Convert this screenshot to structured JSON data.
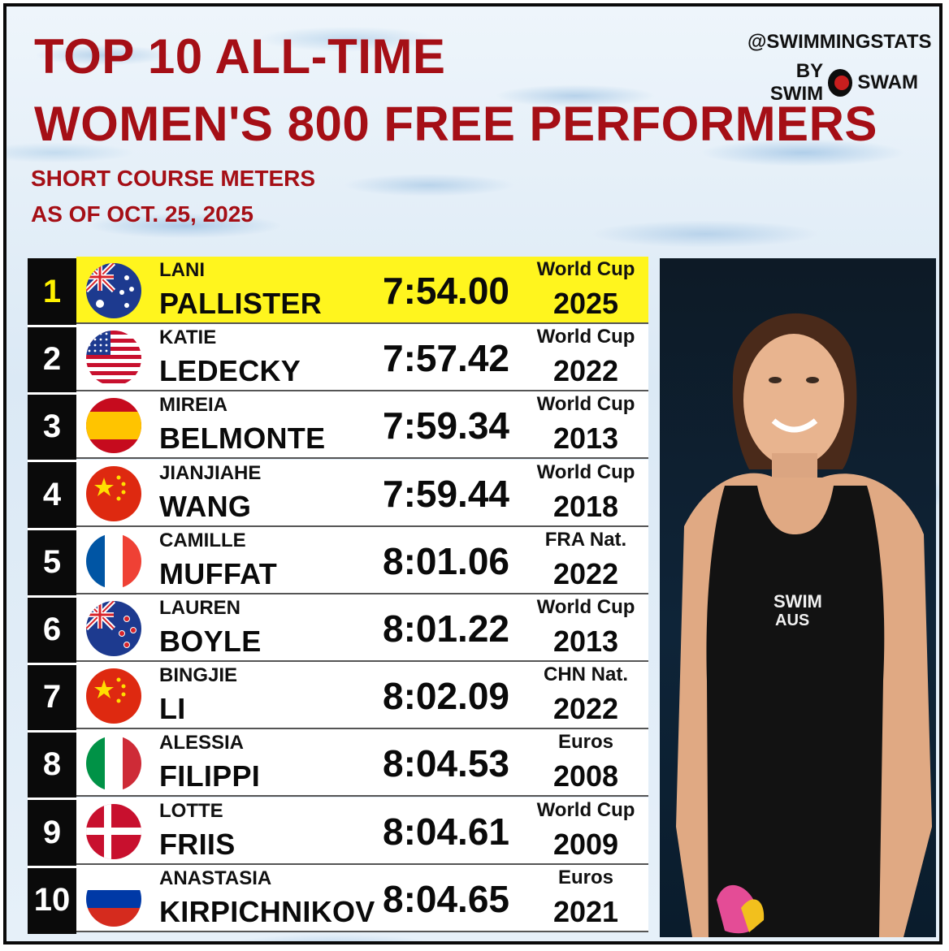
{
  "header": {
    "title_line1": "TOP 10 ALL-TIME",
    "title_line2": "WOMEN'S 800 FREE PERFORMERS",
    "subtitle1": "SHORT COURSE METERS",
    "subtitle2": "AS OF OCT. 25, 2025"
  },
  "brand": {
    "handle": "@SWIMMINGSTATS",
    "by": "BY SWIM",
    "name": "SWAM"
  },
  "colors": {
    "title_red": "#a50f16",
    "highlight_yellow": "#fff51e",
    "rank_bg": "#0a0a0a"
  },
  "rows": [
    {
      "rank": "1",
      "first": "LANI",
      "last": "PALLISTER",
      "time": "7:54.00",
      "meet": "World Cup",
      "year": "2025",
      "flag": "australia-flag"
    },
    {
      "rank": "2",
      "first": "KATIE",
      "last": "LEDECKY",
      "time": "7:57.42",
      "meet": "World Cup",
      "year": "2022",
      "flag": "usa-flag"
    },
    {
      "rank": "3",
      "first": "MIREIA",
      "last": "BELMONTE",
      "time": "7:59.34",
      "meet": "World Cup",
      "year": "2013",
      "flag": "spain-flag"
    },
    {
      "rank": "4",
      "first": "JIANJIAHE",
      "last": "WANG",
      "time": "7:59.44",
      "meet": "World Cup",
      "year": "2018",
      "flag": "china-flag"
    },
    {
      "rank": "5",
      "first": "CAMILLE",
      "last": "MUFFAT",
      "time": "8:01.06",
      "meet": "FRA Nat.",
      "year": "2022",
      "flag": "france-flag"
    },
    {
      "rank": "6",
      "first": "LAUREN",
      "last": "BOYLE",
      "time": "8:01.22",
      "meet": "World Cup",
      "year": "2013",
      "flag": "new-zealand-flag"
    },
    {
      "rank": "7",
      "first": "BINGJIE",
      "last": "LI",
      "time": "8:02.09",
      "meet": "CHN Nat.",
      "year": "2022",
      "flag": "china-flag"
    },
    {
      "rank": "8",
      "first": "ALESSIA",
      "last": "FILIPPI",
      "time": "8:04.53",
      "meet": "Euros",
      "year": "2008",
      "flag": "italy-flag"
    },
    {
      "rank": "9",
      "first": "LOTTE",
      "last": "FRIIS",
      "time": "8:04.61",
      "meet": "World Cup",
      "year": "2009",
      "flag": "denmark-flag"
    },
    {
      "rank": "10",
      "first": "ANASTASIA",
      "last": "KIRPICHNIKOV",
      "time": "8:04.65",
      "meet": "Euros",
      "year": "2021",
      "flag": "russia-flag"
    }
  ]
}
